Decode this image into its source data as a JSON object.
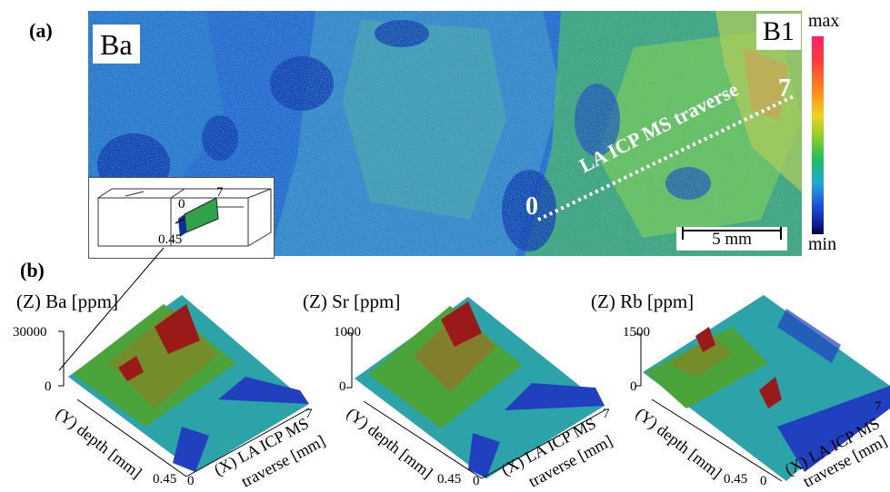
{
  "panel_a": {
    "label": "(a)",
    "element": "Ba",
    "sample": "B1",
    "traverse_label": "LA ICP MS traverse",
    "traverse_start": "0",
    "traverse_end": "7",
    "scale_bar": "5 mm",
    "colorbar": {
      "max": "max",
      "min": "min"
    },
    "inset": {
      "label_0": "0",
      "label_7": "7",
      "label_depth": "0.45"
    }
  },
  "panel_b": {
    "label": "(b)",
    "plots": [
      {
        "title": "(Z) Ba [ppm]",
        "z_max": "30000",
        "z_min": "0",
        "y_label": "(Y) depth [mm]",
        "y_end": "0.45",
        "x_start": "0",
        "x_end": "7",
        "x_label_1": "(X) LA ICP MS",
        "x_label_2": "traverse [mm]"
      },
      {
        "title": "(Z) Sr [ppm]",
        "z_max": "1000",
        "z_min": "0",
        "y_label": "(Y) depth [mm]",
        "y_end": "0.45",
        "x_start": "0",
        "x_end": "7",
        "x_label_1": "(X) LA ICP MS",
        "x_label_2": "traverse [mm]"
      },
      {
        "title": "(Z) Rb [ppm]",
        "z_max": "1500",
        "z_min": "0",
        "y_label": "(Y) depth [mm]",
        "y_end": "0.45",
        "x_start": "0",
        "x_end": "7",
        "x_label_1": "(X) LA ICP MS",
        "x_label_2": "traverse [mm]"
      }
    ]
  },
  "colors": {
    "low": "#0a2a9a",
    "mid": "#1fa9d8",
    "green": "#5fc23a",
    "high": "#e8d02a",
    "max": "#e0105a"
  }
}
